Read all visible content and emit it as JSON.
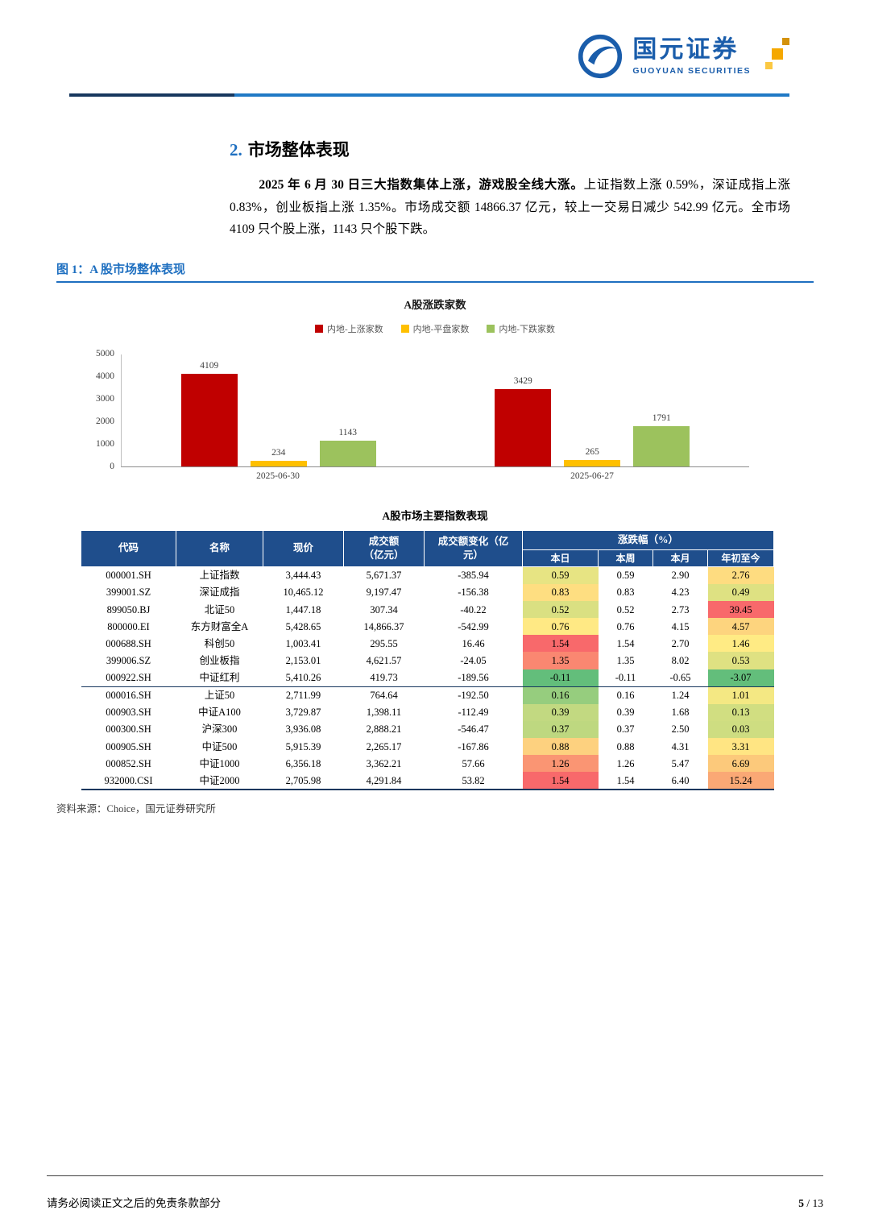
{
  "brand": {
    "name_cn": "国元证券",
    "name_en": "GUOYUAN SECURITIES",
    "blue": "#1a5dab",
    "gold": "#f5a800"
  },
  "section": {
    "number": "2.",
    "title": "市场整体表现"
  },
  "paragraph": {
    "bold": "2025 年 6 月 30 日三大指数集体上涨，游戏股全线大涨。",
    "rest": "上证指数上涨 0.59%，深证成指上涨 0.83%，创业板指上涨 1.35%。市场成交额 14866.37 亿元，较上一交易日减少 542.99 亿元。全市场 4109 只个股上涨，1143 只个股下跌。"
  },
  "figure": {
    "caption": "图 1：A 股市场整体表现",
    "source": "资料来源：Choice，国元证券研究所"
  },
  "chart_data": {
    "type": "bar",
    "title": "A股涨跌家数",
    "categories": [
      "2025-06-30",
      "2025-06-27"
    ],
    "series": [
      {
        "name": "内地-上涨家数",
        "color": "#c00000",
        "values": [
          4109,
          3429
        ]
      },
      {
        "name": "内地-平盘家数",
        "color": "#ffc000",
        "values": [
          234,
          265
        ]
      },
      {
        "name": "内地-下跌家数",
        "color": "#9cc25d",
        "values": [
          1143,
          1791
        ]
      }
    ],
    "ylim": [
      0,
      5000
    ],
    "yticks": [
      0,
      1000,
      2000,
      3000,
      4000,
      5000
    ],
    "grid": false,
    "legend_position": "top",
    "value_labels": true
  },
  "table": {
    "title": "A股市场主要指数表现",
    "header_bg": "#1f4e8c",
    "columns": [
      "代码",
      "名称",
      "现价",
      "成交额\n（亿元）",
      "成交额变化（亿\n元）",
      "涨跌幅（%）",
      "本日",
      "本周",
      "本月",
      "年初至今"
    ],
    "group_break_after_row": 7,
    "rows": [
      {
        "code": "000001.SH",
        "name": "上证指数",
        "price": "3,444.43",
        "turnover": "5,671.37",
        "turnover_chg": "-385.94",
        "day": "0.59",
        "week": "0.59",
        "month": "2.90",
        "ytd": "2.76",
        "day_bg": "#e7e483",
        "ytd_bg": "#fedc80"
      },
      {
        "code": "399001.SZ",
        "name": "深证成指",
        "price": "10,465.12",
        "turnover": "9,197.47",
        "turnover_chg": "-156.38",
        "day": "0.83",
        "week": "0.83",
        "month": "4.23",
        "ytd": "0.49",
        "day_bg": "#fede81",
        "ytd_bg": "#dee182"
      },
      {
        "code": "899050.BJ",
        "name": "北证50",
        "price": "1,447.18",
        "turnover": "307.34",
        "turnover_chg": "-40.22",
        "day": "0.52",
        "week": "0.52",
        "month": "2.73",
        "ytd": "39.45",
        "day_bg": "#dae082",
        "ytd_bg": "#f8696b"
      },
      {
        "code": "800000.EI",
        "name": "东方财富全A",
        "price": "5,428.65",
        "turnover": "14,866.37",
        "turnover_chg": "-542.99",
        "day": "0.76",
        "week": "0.76",
        "month": "4.15",
        "ytd": "4.57",
        "day_bg": "#ffe984",
        "ytd_bg": "#fdd47e"
      },
      {
        "code": "000688.SH",
        "name": "科创50",
        "price": "1,003.41",
        "turnover": "295.55",
        "turnover_chg": "16.46",
        "day": "1.54",
        "week": "1.54",
        "month": "2.70",
        "ytd": "1.46",
        "day_bg": "#f8696b",
        "ytd_bg": "#ffeb84"
      },
      {
        "code": "399006.SZ",
        "name": "创业板指",
        "price": "2,153.01",
        "turnover": "4,621.57",
        "turnover_chg": "-24.05",
        "day": "1.35",
        "week": "1.35",
        "month": "8.02",
        "ytd": "0.53",
        "day_bg": "#fa8771",
        "ytd_bg": "#dfe182"
      },
      {
        "code": "000922.SH",
        "name": "中证红利",
        "price": "5,410.26",
        "turnover": "419.73",
        "turnover_chg": "-189.56",
        "day": "-0.11",
        "week": "-0.11",
        "month": "-0.65",
        "ytd": "-3.07",
        "day_bg": "#63be7b",
        "ytd_bg": "#63be7b"
      },
      {
        "code": "000016.SH",
        "name": "上证50",
        "price": "2,711.99",
        "turnover": "764.64",
        "turnover_chg": "-192.50",
        "day": "0.16",
        "week": "0.16",
        "month": "1.24",
        "ytd": "1.01",
        "day_bg": "#96cd7e",
        "ytd_bg": "#f4e883"
      },
      {
        "code": "000903.SH",
        "name": "中证A100",
        "price": "3,729.87",
        "turnover": "1,398.11",
        "turnover_chg": "-112.49",
        "day": "0.39",
        "week": "0.39",
        "month": "1.68",
        "ytd": "0.13",
        "day_bg": "#c2d981",
        "ytd_bg": "#d1de81"
      },
      {
        "code": "000300.SH",
        "name": "沪深300",
        "price": "3,936.08",
        "turnover": "2,888.21",
        "turnover_chg": "-546.47",
        "day": "0.37",
        "week": "0.37",
        "month": "2.50",
        "ytd": "0.03",
        "day_bg": "#bed880",
        "ytd_bg": "#cedd81"
      },
      {
        "code": "000905.SH",
        "name": "中证500",
        "price": "5,915.39",
        "turnover": "2,265.17",
        "turnover_chg": "-167.86",
        "day": "0.88",
        "week": "0.88",
        "month": "4.31",
        "ytd": "3.31",
        "day_bg": "#fdd17f",
        "ytd_bg": "#ffe583"
      },
      {
        "code": "000852.SH",
        "name": "中证1000",
        "price": "6,356.18",
        "turnover": "3,362.21",
        "turnover_chg": "57.66",
        "day": "1.26",
        "week": "1.26",
        "month": "5.47",
        "ytd": "6.69",
        "day_bg": "#fa9573",
        "ytd_bg": "#fcc97b"
      },
      {
        "code": "932000.CSI",
        "name": "中证2000",
        "price": "2,705.98",
        "turnover": "4,291.84",
        "turnover_chg": "53.82",
        "day": "1.54",
        "week": "1.54",
        "month": "6.40",
        "ytd": "15.24",
        "day_bg": "#f8696b",
        "ytd_bg": "#faa875"
      }
    ]
  },
  "footer": {
    "disclaimer": "请务必阅读正文之后的免责条款部分",
    "page_current": "5",
    "page_separator": "/",
    "page_total": "13"
  }
}
